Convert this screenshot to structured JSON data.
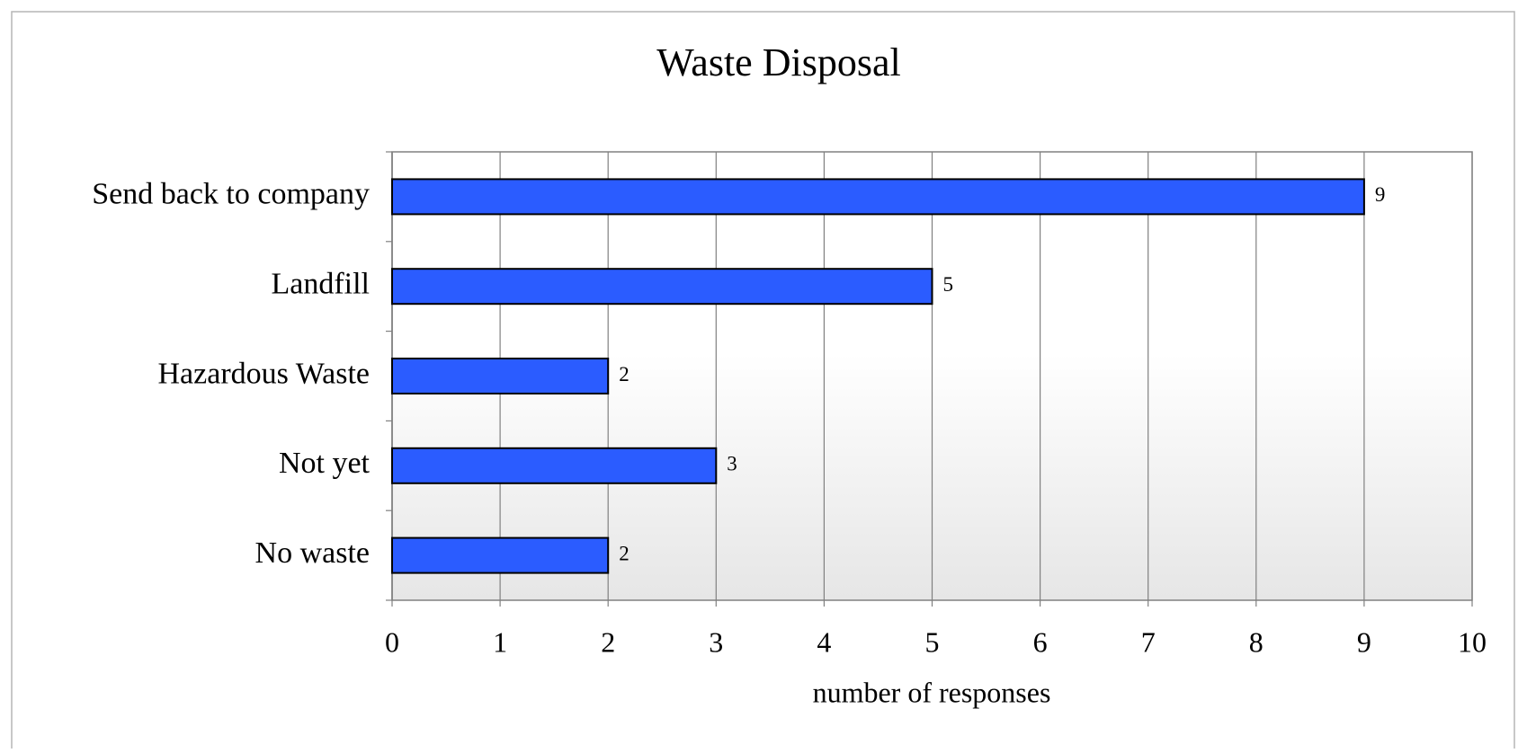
{
  "chart_data": {
    "type": "bar",
    "orientation": "horizontal",
    "title": "Waste Disposal",
    "categories": [
      "Send back to company",
      "Landfill",
      "Hazardous Waste",
      "Not yet",
      "No waste"
    ],
    "values": [
      9,
      5,
      2,
      3,
      2
    ],
    "color": "#2b5cff",
    "xlabel": "number of responses",
    "xlim": [
      0,
      10
    ],
    "xticks": [
      0,
      1,
      2,
      3,
      4,
      5,
      6,
      7,
      8,
      9,
      10
    ],
    "grid": true
  }
}
